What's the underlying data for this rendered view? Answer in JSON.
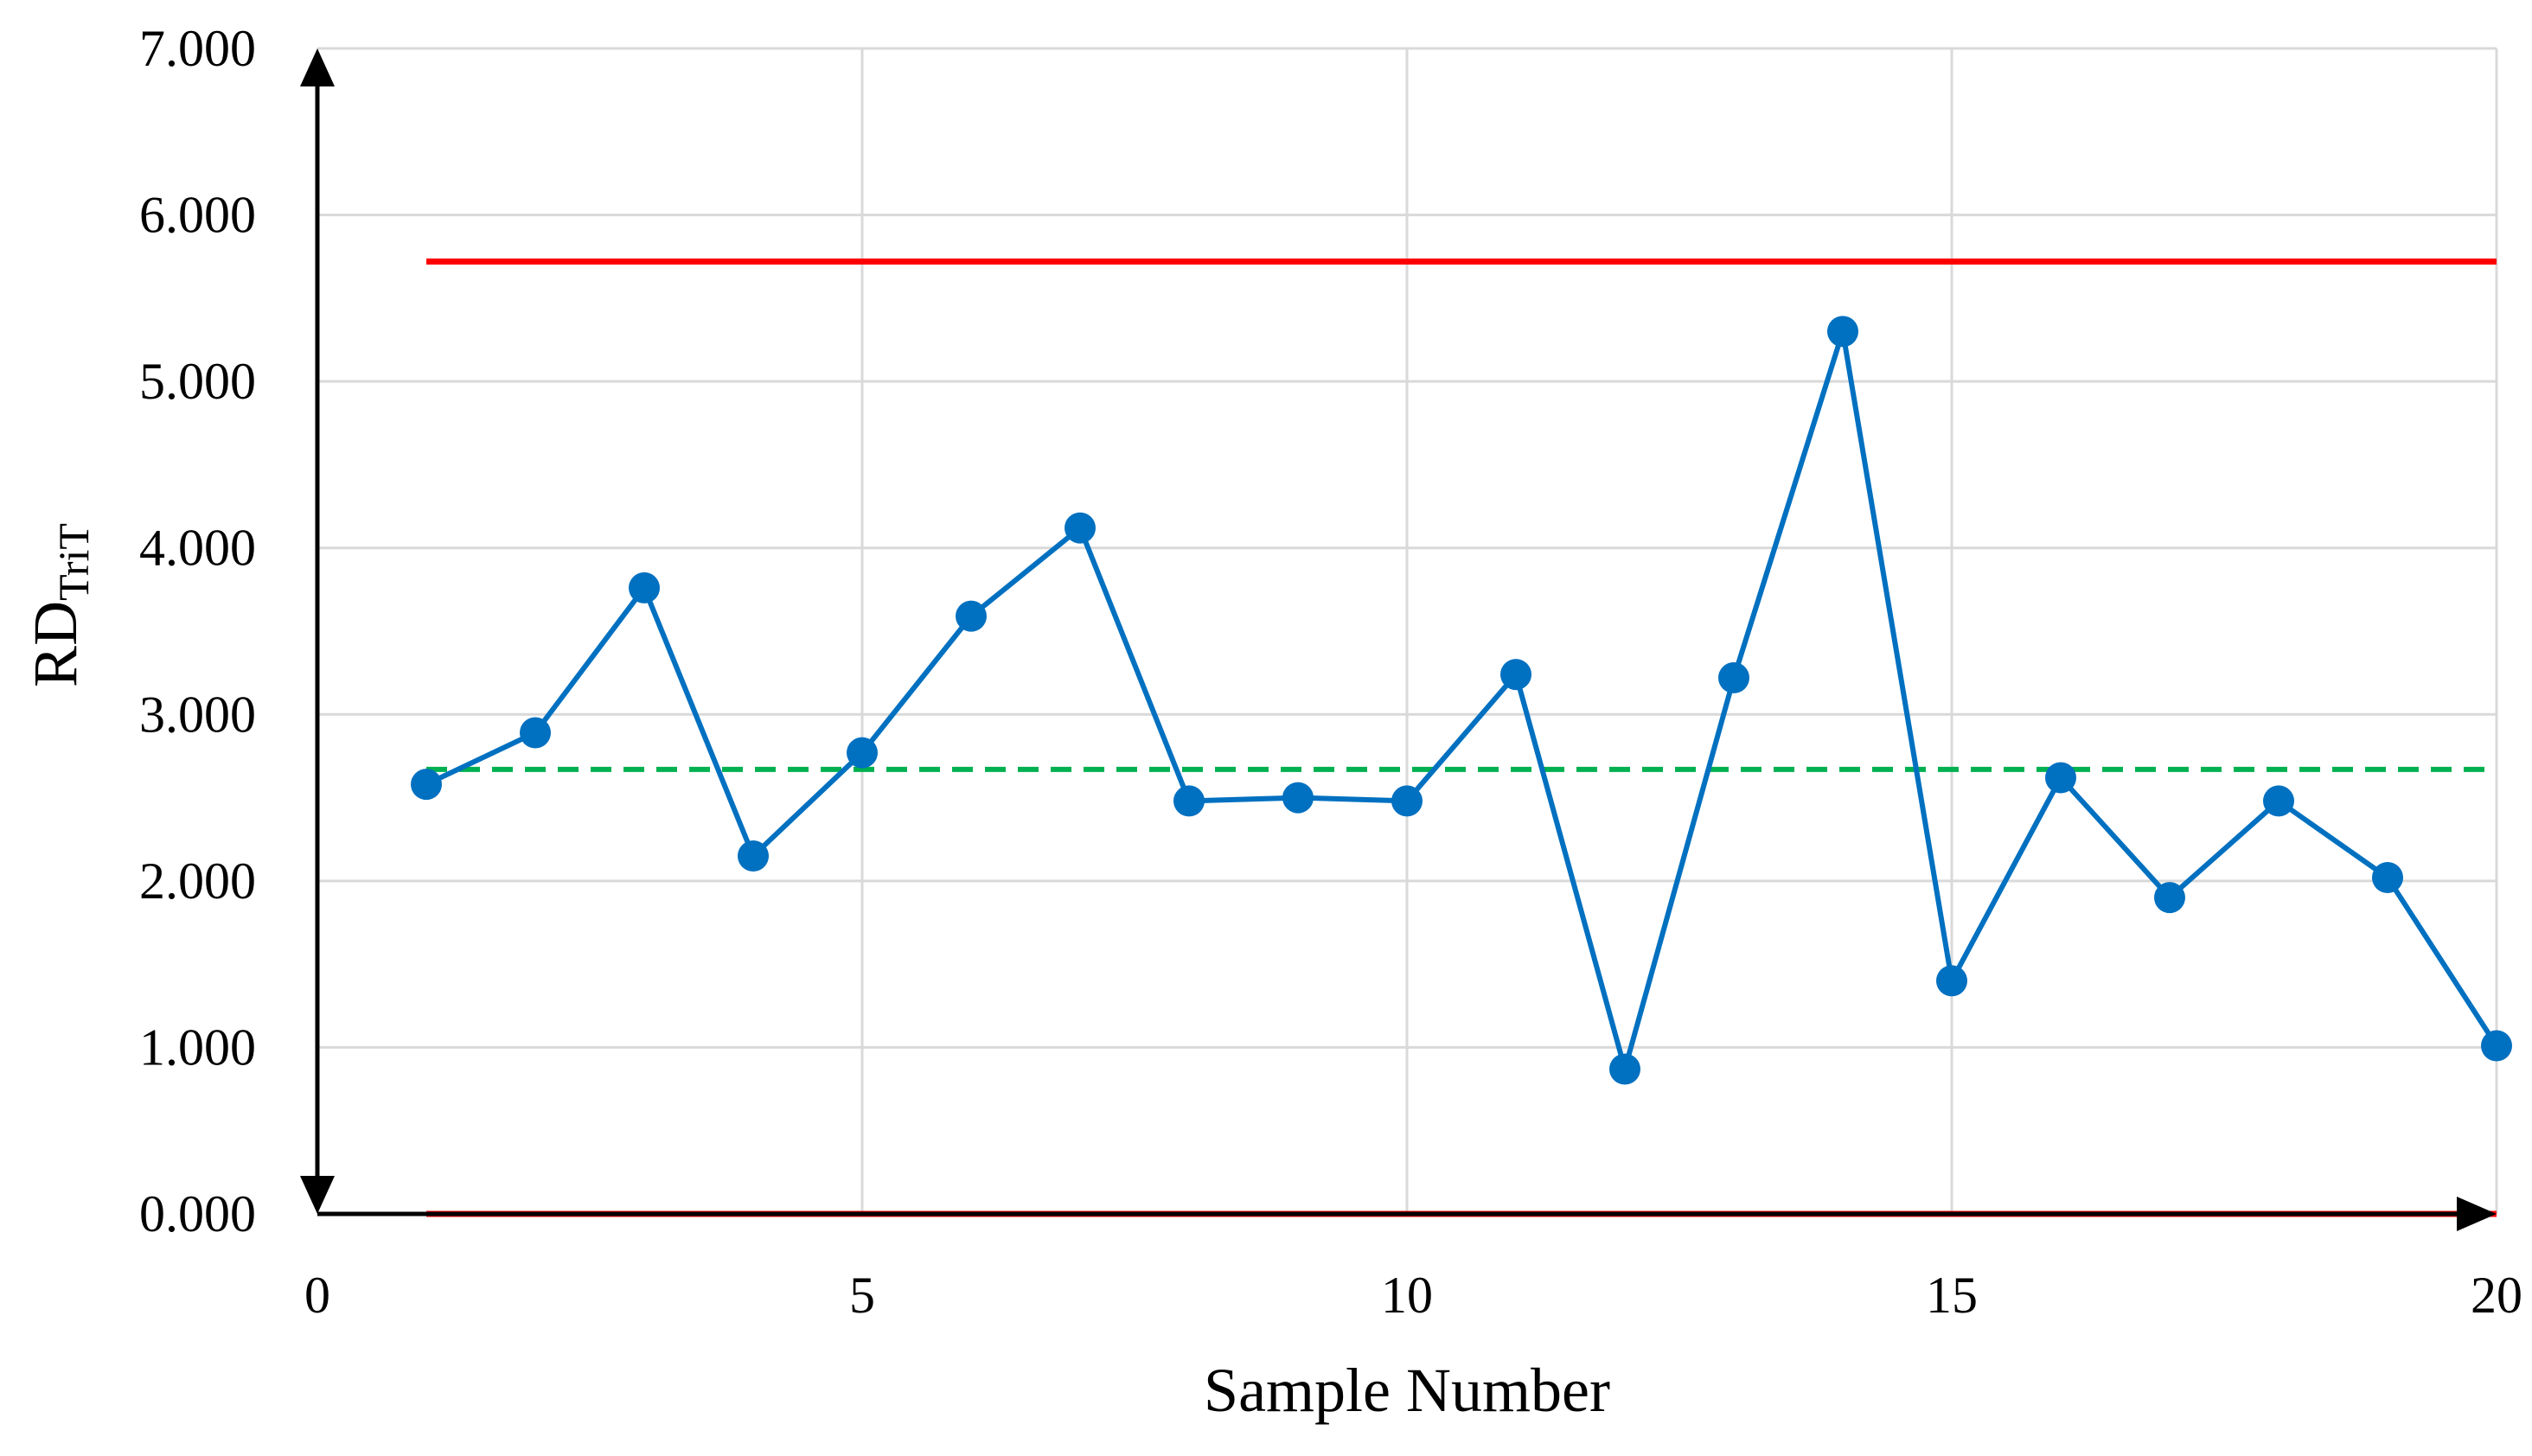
{
  "chart_data": {
    "type": "line",
    "title": "",
    "xlabel": "Sample Number",
    "ylabel": {
      "main": "RD",
      "subscript": "TriT"
    },
    "xlim": [
      0,
      20
    ],
    "ylim": [
      0,
      7
    ],
    "x_ticks": [
      0,
      5,
      10,
      15,
      20
    ],
    "x_tick_labels": [
      "0",
      "5",
      "10",
      "15",
      "20"
    ],
    "y_ticks": [
      0,
      1,
      2,
      3,
      4,
      5,
      6,
      7
    ],
    "y_tick_labels": [
      "0.000",
      "1.000",
      "2.000",
      "3.000",
      "4.000",
      "5.000",
      "6.000",
      "7.000"
    ],
    "grid": true,
    "legend": "none",
    "series": [
      {
        "color": "#0070c0",
        "marker": "circle",
        "x": [
          1,
          2,
          3,
          4,
          5,
          6,
          7,
          8,
          9,
          10,
          11,
          12,
          13,
          14,
          15,
          16,
          17,
          18,
          19,
          20
        ],
        "values": [
          2.58,
          2.89,
          3.76,
          2.15,
          2.77,
          3.59,
          4.12,
          2.48,
          2.5,
          2.48,
          3.24,
          0.87,
          3.22,
          5.3,
          1.4,
          2.62,
          1.9,
          2.48,
          2.02,
          1.01
        ]
      }
    ],
    "reference_lines": [
      {
        "kind": "upper-limit",
        "y": 5.72,
        "x_range": [
          1,
          20
        ],
        "color": "#ff0000",
        "style": "solid"
      },
      {
        "kind": "center-line",
        "y": 2.67,
        "x_range": [
          1,
          20
        ],
        "color": "#00b050",
        "style": "dashed"
      },
      {
        "kind": "lower-limit",
        "y": 0,
        "x_range": [
          1,
          20
        ],
        "color": "#ff0000",
        "style": "solid"
      }
    ],
    "colors": {
      "grid": "#d9d9d9",
      "axis": "#000000"
    }
  }
}
